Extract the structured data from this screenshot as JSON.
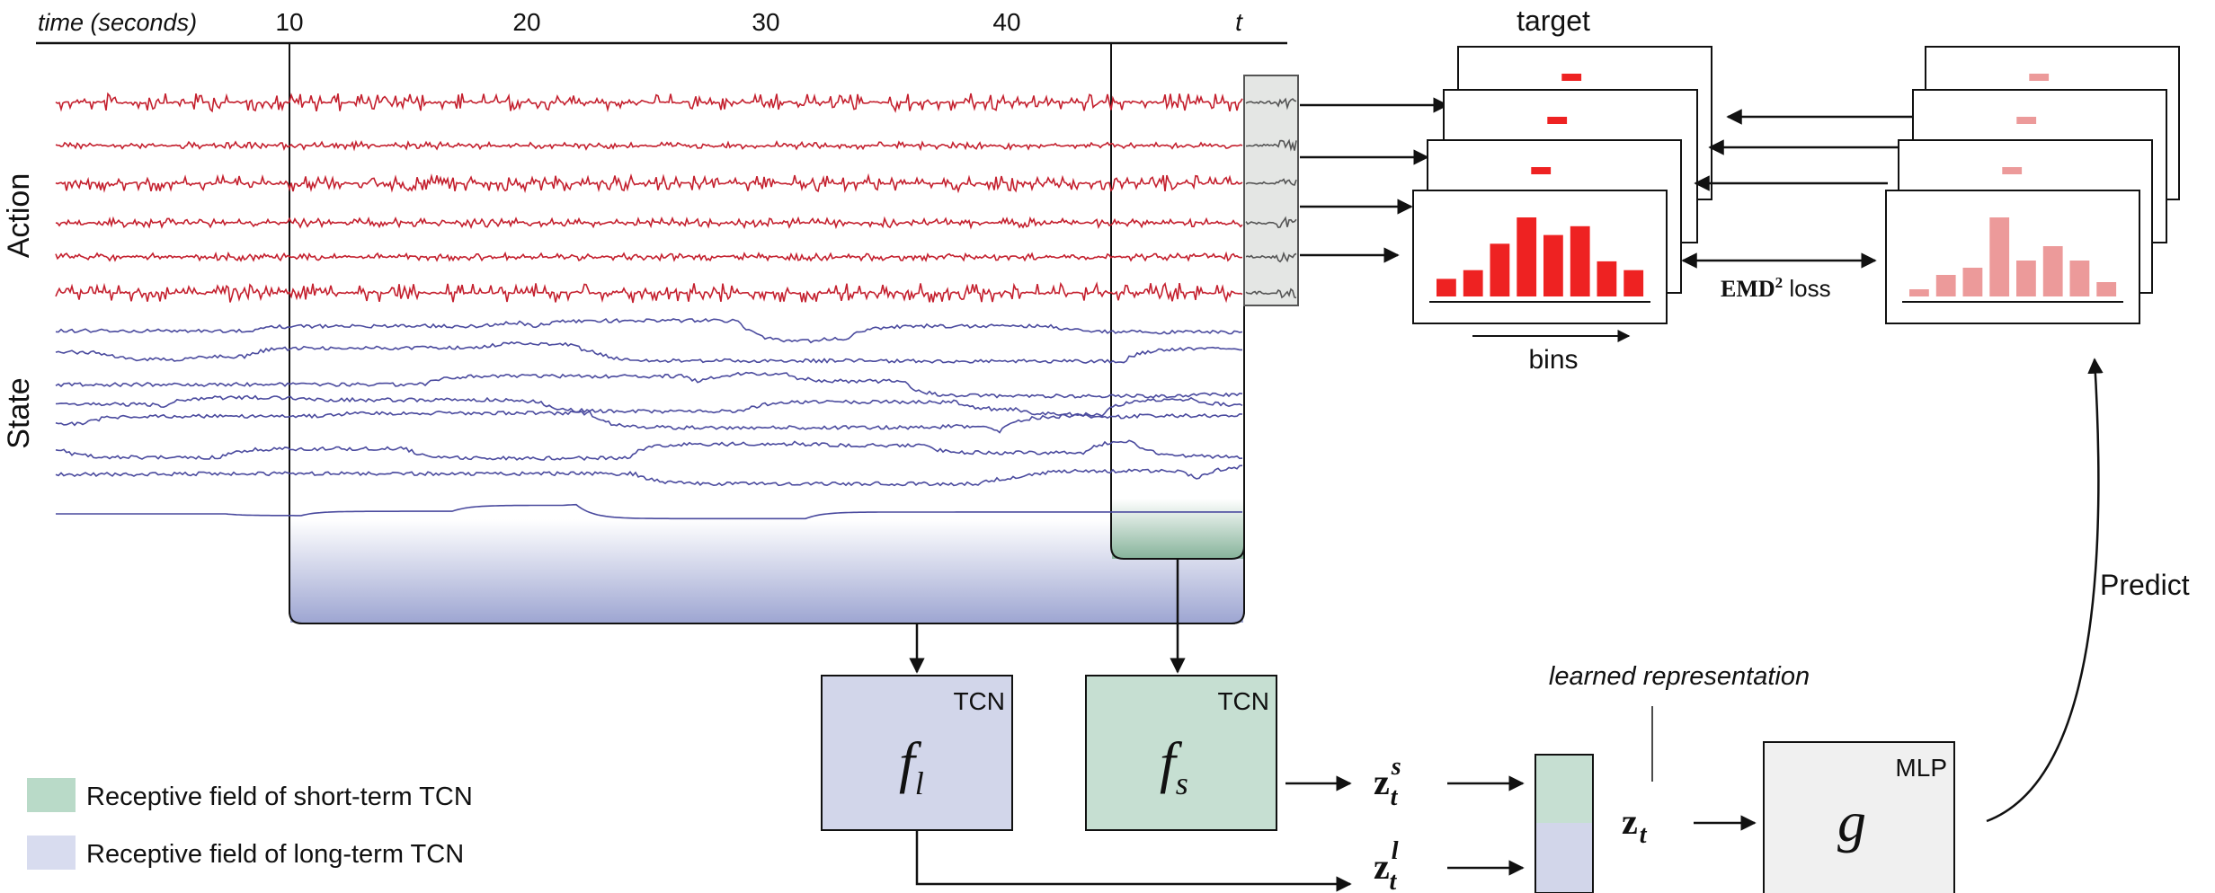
{
  "timeline": {
    "axis_title": "time (seconds)",
    "ticks": [
      "10",
      "20",
      "30",
      "40"
    ],
    "current_time": "t"
  },
  "signals": {
    "action_label": "Action",
    "state_label": "State",
    "action_channel_count": 6,
    "state_channel_count": 8,
    "action_color": "#c4202e",
    "state_color": "#4a4a9e"
  },
  "histograms": {
    "target_title": "target",
    "bins_label": "bins",
    "loss_label_main": "EMD",
    "loss_label_sup": "2",
    "loss_label_rest": " loss",
    "target_values": [
      2,
      3,
      6,
      9,
      7,
      8,
      4,
      3
    ],
    "predicted_values": [
      1,
      3,
      4,
      11,
      5,
      7,
      5,
      2
    ],
    "target_color": "#ee2222",
    "predicted_color": "#ec9a9a"
  },
  "networks": {
    "long_tag": "TCN",
    "long_fn_base": "f",
    "long_fn_sub": "l",
    "short_tag": "TCN",
    "short_fn_base": "f",
    "short_fn_sub": "s",
    "mlp_tag": "MLP",
    "mlp_fn": "g",
    "long_color": "#d2d6ea",
    "short_color": "#c6dfd2"
  },
  "representation": {
    "label": "learned representation",
    "z_short_base": "z",
    "z_short_sub": "t",
    "z_short_sup": "s",
    "z_long_base": "z",
    "z_long_sub": "t",
    "z_long_sup": "l",
    "z_full_base": "z",
    "z_full_sub": "t"
  },
  "predict_label": "Predict",
  "legend": {
    "items": [
      {
        "label": "Receptive field of short-term TCN",
        "color": "#b9dac8"
      },
      {
        "label": "Receptive field of long-term TCN",
        "color": "#d8dcef"
      }
    ]
  }
}
